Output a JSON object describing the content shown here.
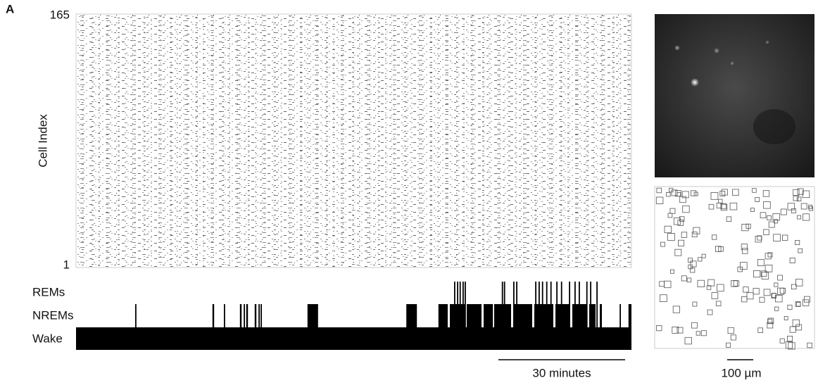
{
  "panel_label": "A",
  "raster": {
    "y_axis_label": "Cell Index",
    "ylim": [
      1,
      165
    ],
    "yticks": [
      1,
      165
    ]
  },
  "hypnogram": {
    "states": [
      "REMs",
      "NREMs",
      "Wake"
    ],
    "xlim": [
      0,
      131.5
    ],
    "nrem_epochs": [
      [
        14.0,
        14.3
      ],
      [
        32.3,
        32.7
      ],
      [
        35.0,
        35.3
      ],
      [
        38.8,
        39.2
      ],
      [
        39.7,
        40.0
      ],
      [
        40.3,
        40.7
      ],
      [
        42.3,
        42.7
      ],
      [
        43.2,
        43.5
      ],
      [
        43.7,
        44.0
      ],
      [
        54.8,
        57.3
      ],
      [
        78.2,
        80.7
      ],
      [
        85.8,
        88.0
      ],
      [
        88.5,
        92.0
      ],
      [
        92.5,
        96.0
      ],
      [
        96.5,
        98.7
      ],
      [
        99.0,
        103.0
      ],
      [
        103.5,
        108.0
      ],
      [
        108.5,
        113.0
      ],
      [
        113.5,
        117.0
      ],
      [
        117.5,
        121.0
      ],
      [
        121.5,
        123.0
      ],
      [
        124.0,
        124.5
      ],
      [
        128.7,
        129.0
      ],
      [
        130.8,
        131.5
      ]
    ],
    "rem_epochs": [
      [
        89.5,
        89.8
      ],
      [
        90.2,
        90.5
      ],
      [
        90.8,
        91.1
      ],
      [
        91.5,
        91.8
      ],
      [
        92.0,
        92.3
      ],
      [
        100.8,
        101.1
      ],
      [
        101.3,
        101.6
      ],
      [
        103.5,
        103.8
      ],
      [
        104.2,
        104.5
      ],
      [
        108.7,
        109.0
      ],
      [
        109.5,
        109.8
      ],
      [
        110.3,
        110.6
      ],
      [
        111.3,
        111.6
      ],
      [
        112.3,
        112.6
      ],
      [
        113.7,
        114.0
      ],
      [
        114.8,
        115.1
      ],
      [
        116.7,
        117.0
      ],
      [
        118.0,
        118.3
      ],
      [
        119.0,
        119.3
      ],
      [
        120.8,
        121.1
      ],
      [
        121.7,
        122.0
      ],
      [
        123.2,
        123.5
      ]
    ]
  },
  "time_scale_bar": {
    "label": "30 minutes",
    "minutes": 30
  },
  "image_scale_bar": {
    "label": "100 µm"
  }
}
